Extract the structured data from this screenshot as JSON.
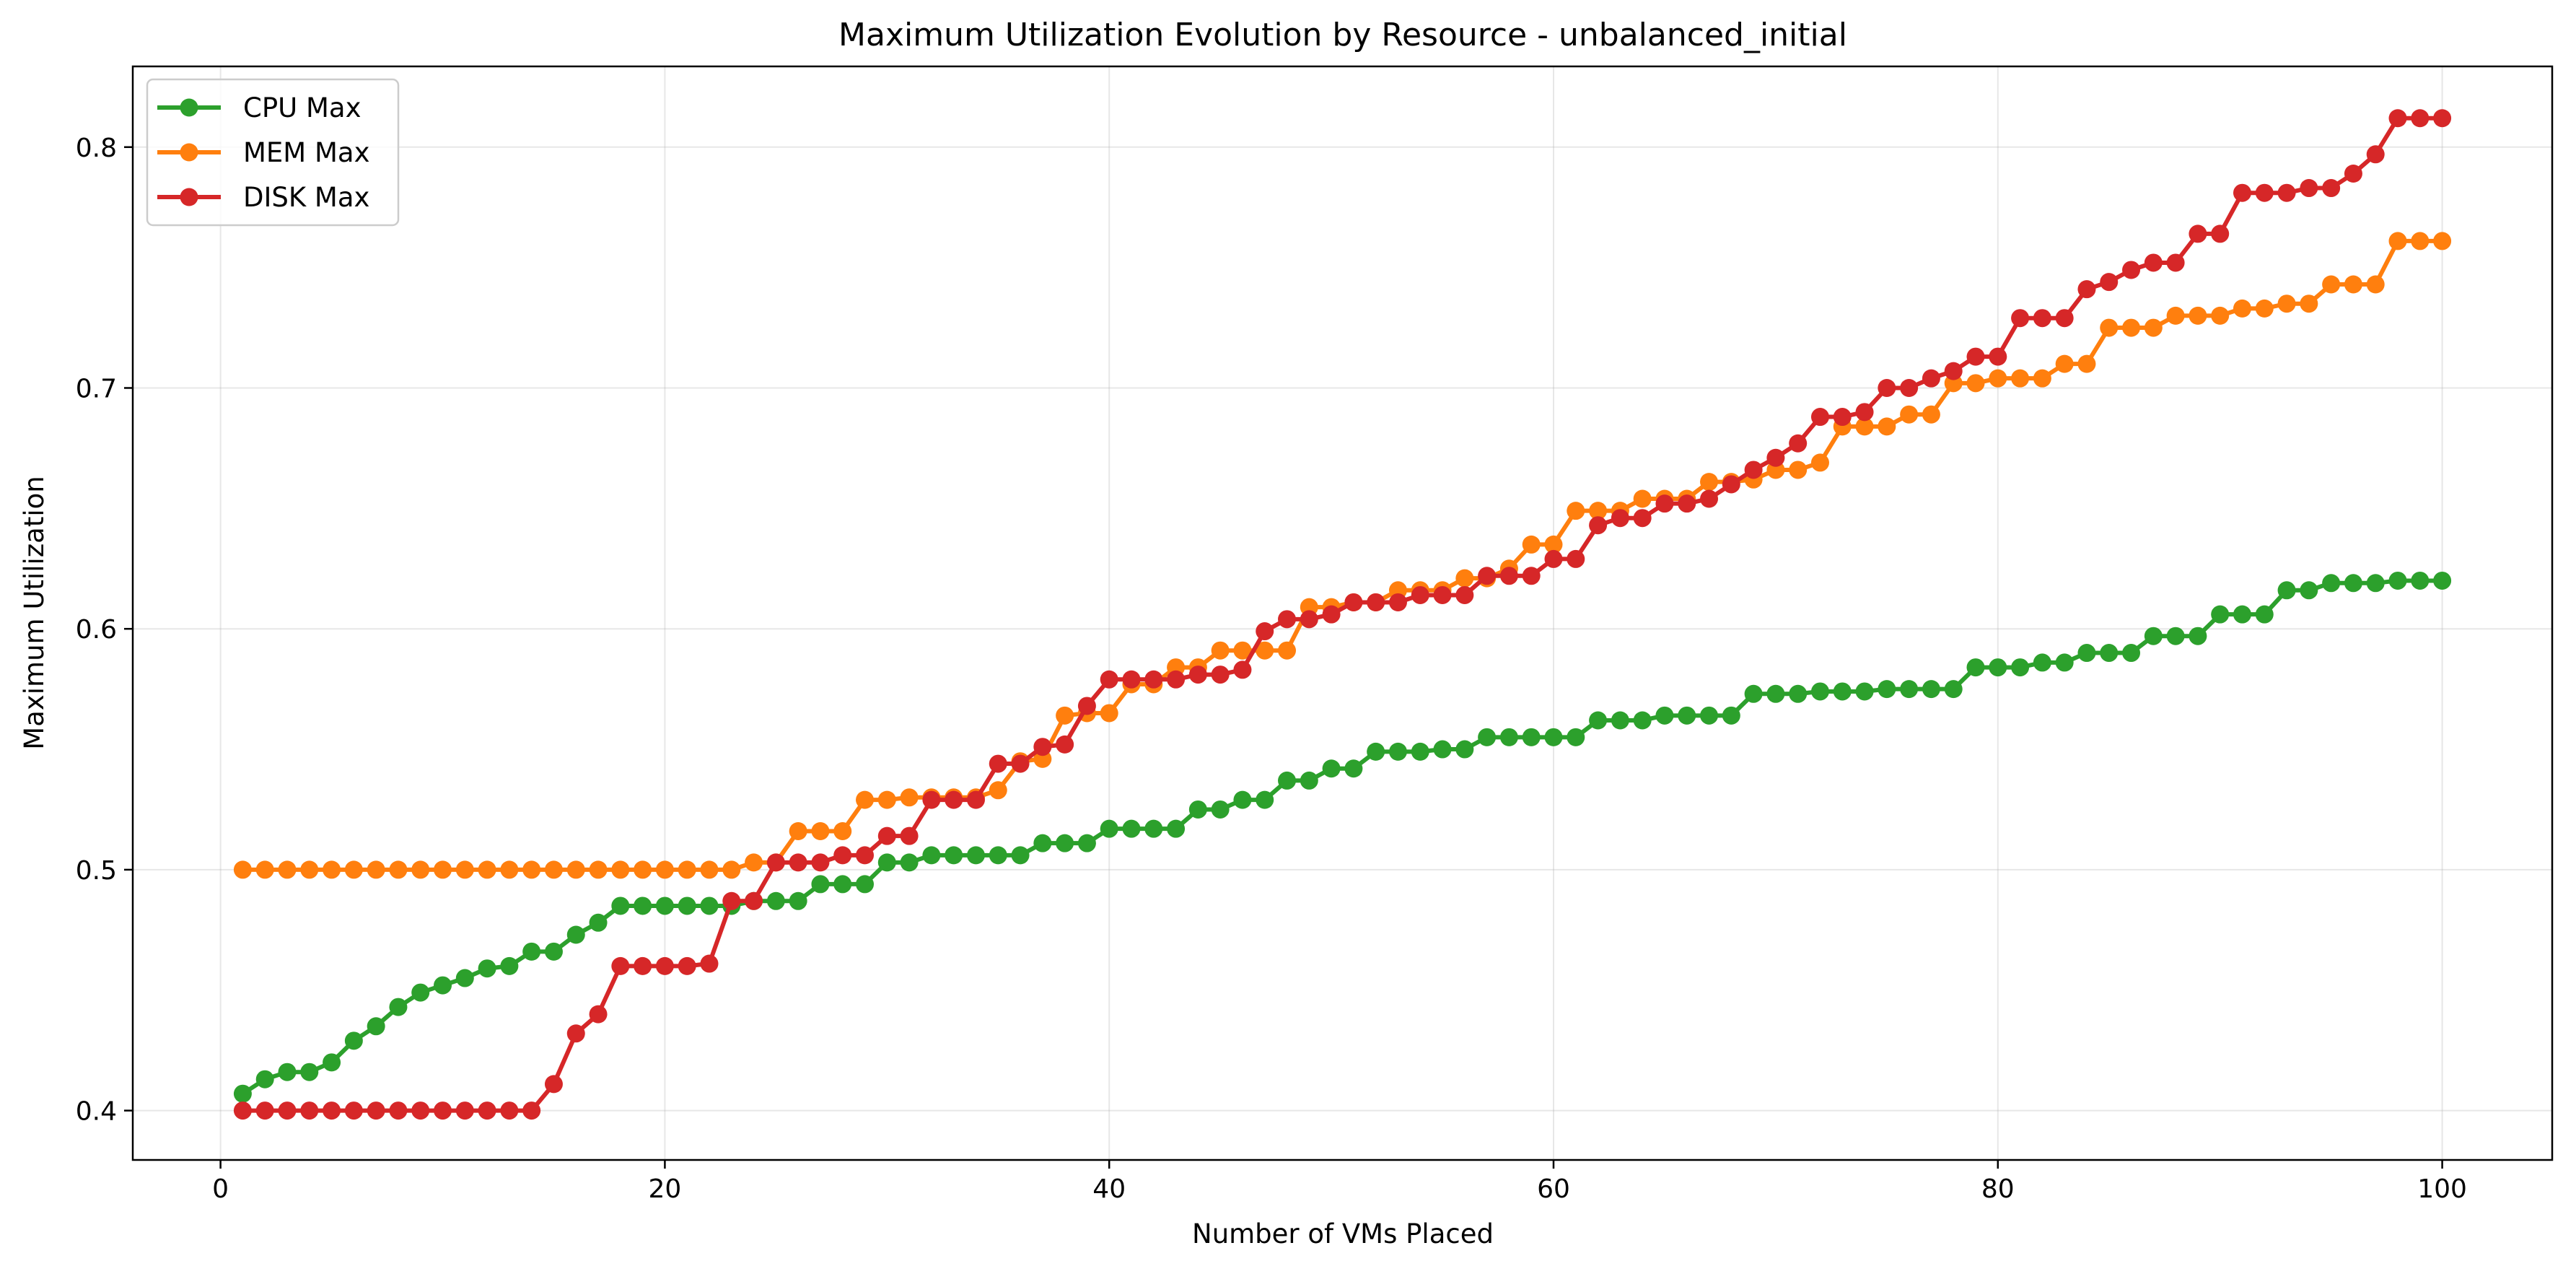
{
  "chart_data": {
    "type": "line",
    "title": "Maximum Utilization Evolution by Resource - unbalanced_initial",
    "xlabel": "Number of VMs Placed",
    "ylabel": "Maximum Utilization",
    "xlim": [
      -3.95,
      104.95
    ],
    "ylim": [
      0.3795,
      0.8335
    ],
    "xticks": [
      0,
      20,
      40,
      60,
      80,
      100
    ],
    "xtick_labels": [
      "0",
      "20",
      "40",
      "60",
      "80",
      "100"
    ],
    "yticks": [
      0.4,
      0.5,
      0.6,
      0.7,
      0.8
    ],
    "ytick_labels": [
      "0.4",
      "0.5",
      "0.6",
      "0.7",
      "0.8"
    ],
    "grid": true,
    "legend_position": "top-left",
    "x": [
      1,
      2,
      3,
      4,
      5,
      6,
      7,
      8,
      9,
      10,
      11,
      12,
      13,
      14,
      15,
      16,
      17,
      18,
      19,
      20,
      21,
      22,
      23,
      24,
      25,
      26,
      27,
      28,
      29,
      30,
      31,
      32,
      33,
      34,
      35,
      36,
      37,
      38,
      39,
      40,
      41,
      42,
      43,
      44,
      45,
      46,
      47,
      48,
      49,
      50,
      51,
      52,
      53,
      54,
      55,
      56,
      57,
      58,
      59,
      60,
      61,
      62,
      63,
      64,
      65,
      66,
      67,
      68,
      69,
      70,
      71,
      72,
      73,
      74,
      75,
      76,
      77,
      78,
      79,
      80,
      81,
      82,
      83,
      84,
      85,
      86,
      87,
      88,
      89,
      90,
      91,
      92,
      93,
      94,
      95,
      96,
      97,
      98,
      99,
      100
    ],
    "series": [
      {
        "name": "CPU Max",
        "color": "#2ca02c",
        "values": [
          0.407,
          0.413,
          0.416,
          0.416,
          0.42,
          0.429,
          0.435,
          0.443,
          0.449,
          0.452,
          0.455,
          0.459,
          0.46,
          0.466,
          0.466,
          0.473,
          0.478,
          0.485,
          0.485,
          0.485,
          0.485,
          0.485,
          0.485,
          0.487,
          0.487,
          0.487,
          0.494,
          0.494,
          0.494,
          0.503,
          0.503,
          0.506,
          0.506,
          0.506,
          0.506,
          0.506,
          0.511,
          0.511,
          0.511,
          0.517,
          0.517,
          0.517,
          0.517,
          0.525,
          0.525,
          0.529,
          0.529,
          0.537,
          0.537,
          0.542,
          0.542,
          0.549,
          0.549,
          0.549,
          0.55,
          0.55,
          0.555,
          0.555,
          0.555,
          0.555,
          0.555,
          0.562,
          0.562,
          0.562,
          0.564,
          0.564,
          0.564,
          0.564,
          0.573,
          0.573,
          0.573,
          0.574,
          0.574,
          0.574,
          0.575,
          0.575,
          0.575,
          0.575,
          0.584,
          0.584,
          0.584,
          0.586,
          0.586,
          0.59,
          0.59,
          0.59,
          0.597,
          0.597,
          0.597,
          0.606,
          0.606,
          0.606,
          0.616,
          0.616,
          0.619,
          0.619,
          0.619,
          0.62,
          0.62,
          0.62
        ]
      },
      {
        "name": "MEM Max",
        "color": "#ff7f0e",
        "values": [
          0.5,
          0.5,
          0.5,
          0.5,
          0.5,
          0.5,
          0.5,
          0.5,
          0.5,
          0.5,
          0.5,
          0.5,
          0.5,
          0.5,
          0.5,
          0.5,
          0.5,
          0.5,
          0.5,
          0.5,
          0.5,
          0.5,
          0.5,
          0.503,
          0.503,
          0.516,
          0.516,
          0.516,
          0.529,
          0.529,
          0.53,
          0.53,
          0.53,
          0.53,
          0.533,
          0.545,
          0.546,
          0.564,
          0.565,
          0.565,
          0.577,
          0.577,
          0.584,
          0.584,
          0.591,
          0.591,
          0.591,
          0.591,
          0.609,
          0.609,
          0.611,
          0.611,
          0.616,
          0.616,
          0.616,
          0.621,
          0.621,
          0.625,
          0.635,
          0.635,
          0.649,
          0.649,
          0.649,
          0.654,
          0.654,
          0.654,
          0.661,
          0.661,
          0.662,
          0.666,
          0.666,
          0.669,
          0.684,
          0.684,
          0.684,
          0.689,
          0.689,
          0.702,
          0.702,
          0.704,
          0.704,
          0.704,
          0.71,
          0.71,
          0.725,
          0.725,
          0.725,
          0.73,
          0.73,
          0.73,
          0.733,
          0.733,
          0.735,
          0.735,
          0.743,
          0.743,
          0.743,
          0.761,
          0.761,
          0.761
        ]
      },
      {
        "name": "DISK Max",
        "color": "#d62728",
        "values": [
          0.4,
          0.4,
          0.4,
          0.4,
          0.4,
          0.4,
          0.4,
          0.4,
          0.4,
          0.4,
          0.4,
          0.4,
          0.4,
          0.4,
          0.411,
          0.432,
          0.44,
          0.46,
          0.46,
          0.46,
          0.46,
          0.461,
          0.487,
          0.487,
          0.503,
          0.503,
          0.503,
          0.506,
          0.506,
          0.514,
          0.514,
          0.529,
          0.529,
          0.529,
          0.544,
          0.544,
          0.551,
          0.552,
          0.568,
          0.579,
          0.579,
          0.579,
          0.579,
          0.581,
          0.581,
          0.583,
          0.599,
          0.604,
          0.604,
          0.606,
          0.611,
          0.611,
          0.611,
          0.614,
          0.614,
          0.614,
          0.622,
          0.622,
          0.622,
          0.629,
          0.629,
          0.643,
          0.646,
          0.646,
          0.652,
          0.652,
          0.654,
          0.66,
          0.666,
          0.671,
          0.677,
          0.688,
          0.688,
          0.69,
          0.7,
          0.7,
          0.704,
          0.707,
          0.713,
          0.713,
          0.729,
          0.729,
          0.729,
          0.741,
          0.744,
          0.749,
          0.752,
          0.752,
          0.764,
          0.764,
          0.781,
          0.781,
          0.781,
          0.783,
          0.783,
          0.789,
          0.797,
          0.812,
          0.812,
          0.812
        ]
      }
    ]
  }
}
